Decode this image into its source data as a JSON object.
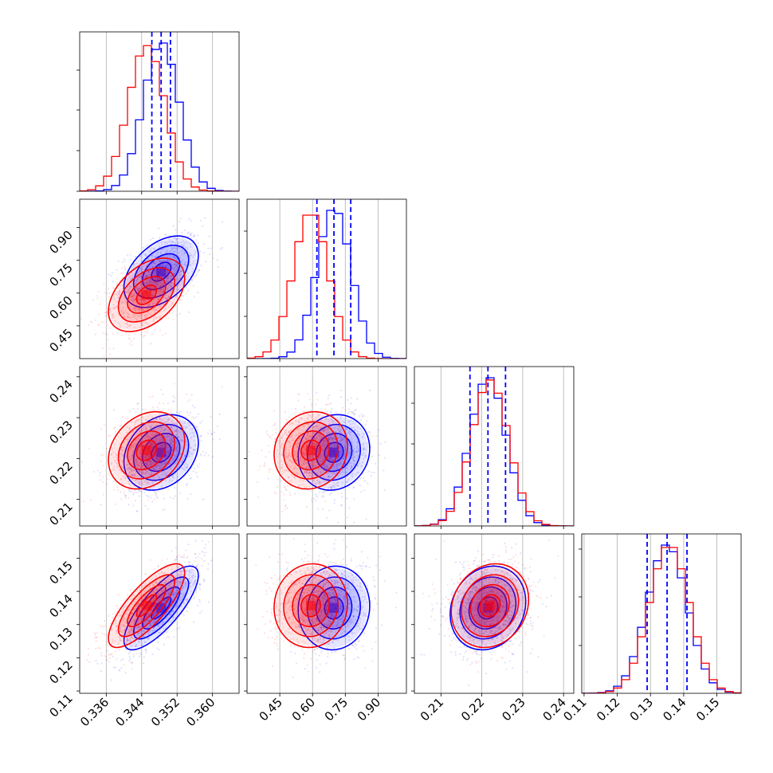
{
  "chart_data": {
    "type": "corner",
    "grid": true,
    "params": [
      {
        "range": [
          0.33,
          0.366
        ],
        "ticks": [
          0.336,
          0.344,
          0.352,
          0.36
        ],
        "tick_labels": [
          "0.336",
          "0.344",
          "0.352",
          "0.360"
        ]
      },
      {
        "range": [
          0.3,
          1.03
        ],
        "ticks": [
          0.45,
          0.6,
          0.75,
          0.9
        ],
        "tick_labels": [
          "0.45",
          "0.60",
          "0.75",
          "0.90"
        ]
      },
      {
        "range": [
          0.2035,
          0.2425
        ],
        "ticks": [
          0.21,
          0.22,
          0.23,
          0.24
        ],
        "tick_labels": [
          "0.21",
          "0.22",
          "0.23",
          "0.24"
        ]
      },
      {
        "range": [
          0.1093,
          0.1573
        ],
        "ticks": [
          0.11,
          0.12,
          0.13,
          0.14,
          0.15
        ],
        "tick_labels": [
          "0.11",
          "0.12",
          "0.13",
          "0.14",
          "0.15"
        ]
      }
    ],
    "series": [
      {
        "color": "#0000ff",
        "mean": [
          0.3484,
          0.698,
          0.2215,
          0.135
        ],
        "std": [
          0.004,
          0.078,
          0.0044,
          0.006
        ]
      },
      {
        "color": "#ff0000",
        "mean": [
          0.3451,
          0.592,
          0.222,
          0.1357
        ],
        "std": [
          0.0041,
          0.08,
          0.0045,
          0.006
        ]
      }
    ],
    "correlations": {
      "0-1": 0.45,
      "0-2": 0.25,
      "0-3": 0.78,
      "1-2": 0.1,
      "1-3": 0.05,
      "2-3": 0.15
    },
    "quantile_lines": {
      "color": "#0000ff",
      "values": [
        [
          0.3463,
          0.3484,
          0.3505
        ],
        [
          0.62,
          0.698,
          0.775
        ],
        [
          0.2171,
          0.2215,
          0.2258
        ],
        [
          0.129,
          0.135,
          0.141
        ]
      ]
    },
    "histogram_bins": 20
  }
}
